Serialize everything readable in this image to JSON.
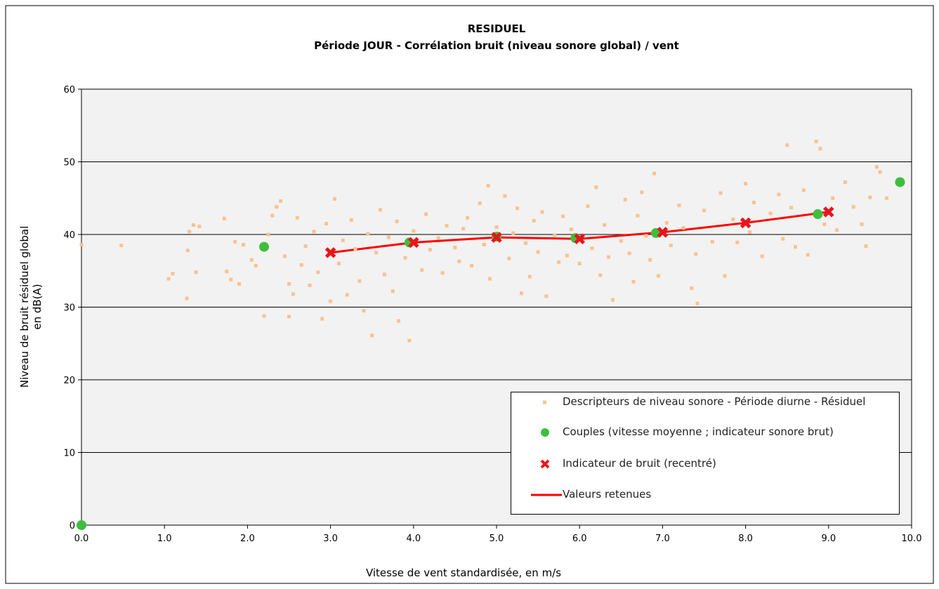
{
  "chart_data": {
    "type": "scatter",
    "title": [
      "RESIDUEL",
      "Période JOUR - Corrélation bruit (niveau sonore global) / vent"
    ],
    "x_label": "Vitesse de vent standardisée, en m/s",
    "y_label": [
      "Niveau de bruit résiduel global",
      "en dB(A)"
    ],
    "xlim": [
      0,
      10
    ],
    "ylim": [
      0,
      60
    ],
    "xticks": [
      {
        "value": 0,
        "label": "0.0"
      },
      {
        "value": 1,
        "label": "1.0"
      },
      {
        "value": 2,
        "label": "2.0"
      },
      {
        "value": 3,
        "label": "3.0"
      },
      {
        "value": 4,
        "label": "4.0"
      },
      {
        "value": 5,
        "label": "5.0"
      },
      {
        "value": 6,
        "label": "6.0"
      },
      {
        "value": 7,
        "label": "7.0"
      },
      {
        "value": 8,
        "label": "8.0"
      },
      {
        "value": 9,
        "label": "9.0"
      },
      {
        "value": 10,
        "label": "10.0"
      }
    ],
    "yticks": [
      0,
      10,
      20,
      30,
      40,
      50,
      60
    ],
    "grid": true,
    "series": [
      {
        "name": "Descripteurs de niveau sonore - Période diurne - Résiduel",
        "color": "#f9c190",
        "marker": "square",
        "x": [
          0.0,
          0.48,
          1.05,
          1.1,
          1.27,
          1.28,
          1.3,
          1.35,
          1.38,
          1.42,
          1.72,
          1.75,
          1.8,
          1.85,
          1.9,
          1.95,
          2.05,
          2.1,
          2.2,
          2.25,
          2.3,
          2.35,
          2.4,
          2.45,
          2.5,
          2.5,
          2.55,
          2.6,
          2.65,
          2.7,
          2.75,
          2.8,
          2.85,
          2.9,
          2.95,
          3.0,
          3.05,
          3.1,
          3.15,
          3.2,
          3.25,
          3.3,
          3.35,
          3.4,
          3.45,
          3.5,
          3.55,
          3.6,
          3.65,
          3.7,
          3.75,
          3.8,
          3.82,
          3.9,
          3.95,
          4.0,
          4.1,
          4.15,
          4.2,
          4.3,
          4.35,
          4.4,
          4.5,
          4.55,
          4.6,
          4.65,
          4.7,
          4.8,
          4.85,
          4.9,
          4.92,
          5.0,
          5.1,
          5.15,
          5.2,
          5.25,
          5.3,
          5.35,
          5.4,
          5.45,
          5.5,
          5.55,
          5.6,
          5.7,
          5.75,
          5.8,
          5.85,
          5.9,
          6.0,
          6.1,
          6.15,
          6.2,
          6.25,
          6.3,
          6.35,
          6.4,
          6.5,
          6.55,
          6.6,
          6.65,
          6.7,
          6.75,
          6.8,
          6.85,
          6.9,
          6.95,
          7.05,
          7.1,
          7.2,
          7.25,
          7.35,
          7.4,
          7.42,
          7.5,
          7.6,
          7.7,
          7.75,
          7.85,
          7.9,
          8.0,
          8.05,
          8.1,
          8.2,
          8.3,
          8.4,
          8.45,
          8.5,
          8.55,
          8.6,
          8.7,
          8.75,
          8.85,
          8.9,
          8.95,
          9.05,
          9.1,
          9.2,
          9.3,
          9.4,
          9.45,
          9.5,
          9.58,
          9.62,
          9.7
        ],
        "values": [
          38.6,
          38.5,
          33.9,
          34.6,
          31.2,
          37.8,
          40.4,
          41.3,
          34.8,
          41.1,
          42.2,
          34.9,
          33.8,
          39.0,
          33.2,
          38.6,
          36.5,
          35.7,
          28.8,
          40.0,
          42.6,
          43.8,
          44.6,
          37.0,
          28.7,
          33.2,
          31.8,
          42.3,
          35.8,
          38.4,
          33.0,
          40.4,
          34.8,
          28.4,
          41.5,
          30.8,
          44.9,
          36.0,
          39.2,
          31.7,
          42.0,
          38.0,
          33.6,
          29.5,
          40.1,
          26.1,
          37.5,
          43.4,
          34.5,
          39.6,
          32.2,
          41.8,
          28.1,
          36.8,
          25.4,
          40.5,
          35.1,
          42.8,
          37.9,
          39.5,
          34.7,
          41.2,
          38.2,
          36.3,
          40.8,
          42.3,
          35.7,
          44.3,
          38.6,
          46.7,
          33.9,
          41.0,
          45.3,
          36.7,
          40.2,
          43.6,
          31.9,
          38.8,
          34.2,
          41.9,
          37.6,
          43.1,
          31.5,
          39.9,
          36.2,
          42.5,
          37.1,
          40.7,
          36.0,
          43.9,
          38.1,
          46.5,
          34.4,
          41.3,
          36.9,
          31.0,
          39.1,
          44.8,
          37.4,
          33.5,
          42.6,
          45.8,
          39.8,
          36.5,
          48.4,
          34.3,
          41.6,
          38.5,
          44.0,
          40.9,
          32.6,
          37.3,
          30.5,
          43.3,
          39.0,
          45.7,
          34.3,
          42.1,
          38.9,
          47.0,
          40.3,
          44.4,
          37.0,
          42.9,
          45.5,
          39.4,
          52.3,
          43.7,
          38.3,
          46.1,
          37.2,
          52.8,
          51.8,
          41.4,
          45.0,
          40.6,
          47.2,
          43.8,
          41.4,
          38.4,
          45.1,
          49.3,
          48.6,
          45.0
        ]
      },
      {
        "name": "Couples (vitesse moyenne ; indicateur sonore brut)",
        "color": "#3dbf3d",
        "marker": "circle",
        "x": [
          0.0,
          2.2,
          3.95,
          5.0,
          5.95,
          6.92,
          8.87,
          9.86
        ],
        "values": [
          0.0,
          38.3,
          38.9,
          39.7,
          39.5,
          40.2,
          42.8,
          47.2
        ]
      },
      {
        "name": "Indicateur de bruit (recentré)",
        "color": "#e8141c",
        "marker": "x",
        "x": [
          3,
          4,
          5,
          6,
          7,
          8,
          9
        ],
        "values": [
          37.5,
          38.9,
          39.6,
          39.4,
          40.3,
          41.6,
          43.1
        ]
      },
      {
        "name": "Valeurs retenues",
        "color": "#ff0000",
        "marker": "line",
        "x": [
          3,
          4,
          5,
          6,
          7,
          8,
          9
        ],
        "values": [
          37.5,
          38.9,
          39.6,
          39.4,
          40.3,
          41.6,
          43.1
        ]
      }
    ]
  }
}
